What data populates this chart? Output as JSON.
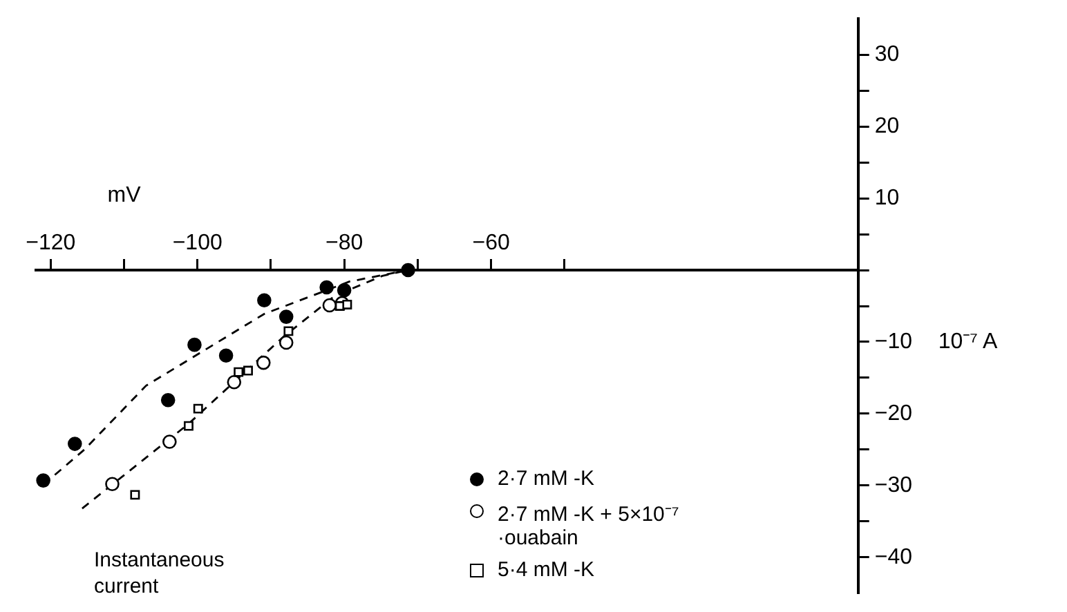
{
  "chart_data": {
    "type": "scatter",
    "xlabel": "mV",
    "ylabel": "10⁻⁷ A",
    "xlim": [
      -122,
      -10
    ],
    "xticks": [
      -120,
      {
        "value": -110,
        "label": null
      },
      -100,
      {
        "value": -90,
        "label": null
      },
      -80,
      {
        "value": -70,
        "label": null
      },
      -60,
      {
        "value": -50,
        "label": null
      }
    ],
    "ylim": [
      -45,
      35
    ],
    "yticks": [
      -40,
      {
        "value": -35,
        "label": null
      },
      -30,
      {
        "value": -25,
        "label": null
      },
      -20,
      {
        "value": -15,
        "label": null
      },
      -10,
      {
        "value": -5,
        "label": null
      },
      {
        "value": 0,
        "label": null
      },
      {
        "value": 5,
        "label": null
      },
      10,
      {
        "value": 15,
        "label": null
      },
      20,
      {
        "value": 25,
        "label": null
      },
      30
    ],
    "grid": false,
    "legend": "bottom",
    "annotations": [
      "Instantaneous current"
    ],
    "series": [
      {
        "name": "2·7 mM -K",
        "color": "#000000",
        "marker": "circle",
        "x": [
          -121,
          -116.7,
          -104,
          -100.4,
          -96.1,
          -90.9,
          -87.9,
          -82.4,
          -80,
          -71.3
        ],
        "values": [
          -29.3,
          -24.2,
          -18.1,
          -10.4,
          -11.9,
          -4.2,
          -6.5,
          -2.4,
          -2.8,
          0
        ]
      },
      {
        "name": "2·7 mM -K + 5×10⁻⁷ ·ouabain",
        "color": "#000000",
        "marker": "circle",
        "x": [
          -111.6,
          -103.8,
          -95,
          -91,
          -87.9,
          -82,
          -80.3
        ],
        "values": [
          -29.8,
          -23.9,
          -15.6,
          -12.9,
          -10.1,
          -4.9,
          -4.6
        ]
      },
      {
        "name": "5·4 mM -K",
        "color": "#000000",
        "marker": "square",
        "x": [
          -108.5,
          -101.2,
          -99.9,
          -94.4,
          -93.1,
          -87.6,
          -80.6,
          -79.6
        ],
        "values": [
          -31.3,
          -21.7,
          -19.3,
          -14.2,
          -14,
          -8.5,
          -5,
          -4.8
        ]
      },
      {
        "type": "line",
        "color": "#000000",
        "marker": "none",
        "line_style": "dashed",
        "x": [
          -121,
          -115.4,
          -107,
          -90.9,
          -79.3,
          -71.3
        ],
        "values": [
          -29.9,
          -25,
          -16.1,
          -6.1,
          -1.6,
          0
        ]
      },
      {
        "type": "line",
        "color": "#000000",
        "marker": "none",
        "line_style": "dashed",
        "x": [
          -115.7,
          -101.2,
          -88.3,
          -81.3,
          -74.8,
          -71.3
        ],
        "values": [
          -33.2,
          -21.4,
          -9.3,
          -3.6,
          -0.8,
          0
        ]
      }
    ]
  }
}
